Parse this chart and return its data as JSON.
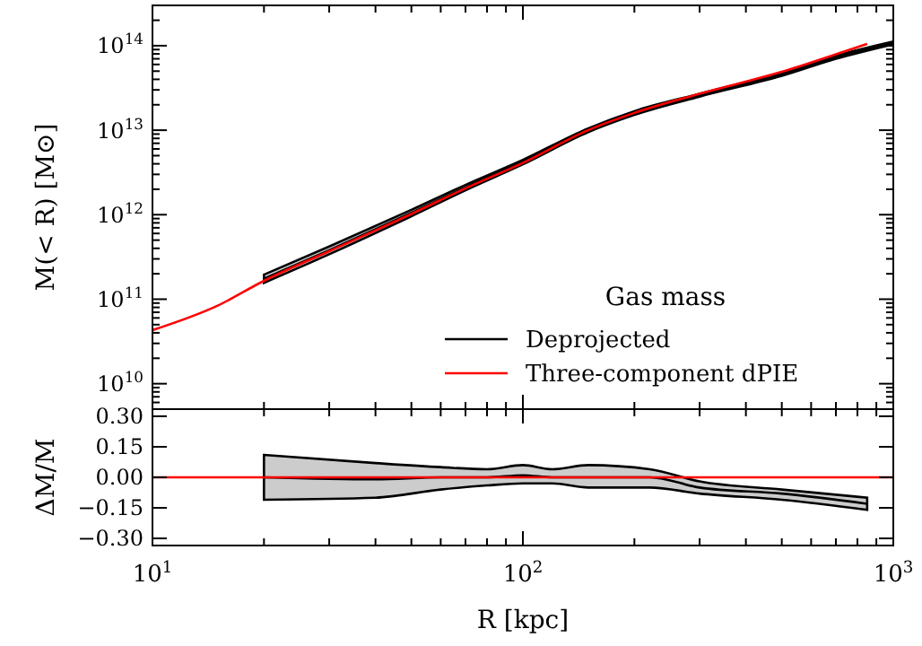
{
  "chart_data": [
    {
      "type": "line",
      "ylabel": "M(< R) [M⊙]",
      "legend_title": "Gas mass",
      "legend": "bottom right",
      "log": "xy",
      "tick_labels": "y",
      "xlim": [
        10,
        1000
      ],
      "ylim": [
        5000000000.0,
        300000000000000.0
      ],
      "xticks": [
        {
          "value": 10,
          "label": null
        },
        {
          "value": 100,
          "label": null
        },
        {
          "value": 1000,
          "label": null
        }
      ],
      "yticks": [
        {
          "value": 10000000000.0,
          "label": "10$^{10}$"
        },
        {
          "value": 100000000000.0,
          "label": "10$^{11}$"
        },
        {
          "value": 1000000000000.0,
          "label": "10$^{12}$"
        },
        {
          "value": 10000000000000.0,
          "label": "10$^{13}$"
        },
        {
          "value": 100000000000000.0,
          "label": "10$^{14}$"
        }
      ],
      "series": [
        {
          "name": "Deprojected",
          "color": "#000000",
          "x": [
            20,
            30,
            50,
            70,
            100,
            150,
            200,
            300,
            500,
            700,
            1000
          ],
          "values": [
            175000000000.0,
            380000000000.0,
            1050000000000.0,
            2100000000000.0,
            4200000000000.0,
            10000000000000.0,
            16000000000000.0,
            26000000000000.0,
            46000000000000.0,
            73000000000000.0,
            108000000000000.0
          ],
          "lower": [
            156000000000.0,
            340000000000.0,
            960000000000.0,
            1950000000000.0,
            3950000000000.0,
            9500000000000.0,
            15200000000000.0,
            25000000000000.0,
            44000000000000.0,
            70000000000000.0,
            104000000000000.0
          ],
          "upper": [
            195000000000.0,
            420000000000.0,
            1140000000000.0,
            2250000000000.0,
            4450000000000.0,
            10500000000000.0,
            16800000000000.0,
            27000000000000.0,
            48000000000000.0,
            76000000000000.0,
            112000000000000.0
          ]
        },
        {
          "name": "Three-component dPIE",
          "color": "#ff0000",
          "x": [
            10,
            15,
            20,
            30,
            50,
            70,
            100,
            150,
            200,
            300,
            500,
            700,
            850
          ],
          "values": [
            43000000000.0,
            84000000000.0,
            165000000000.0,
            370000000000.0,
            1020000000000.0,
            2050000000000.0,
            4100000000000.0,
            10000000000000.0,
            16000000000000.0,
            27000000000000.0,
            49000000000000.0,
            79000000000000.0,
            105000000000000.0
          ]
        }
      ]
    },
    {
      "type": "line",
      "xlabel": "R [kpc]",
      "ylabel": "ΔM/M",
      "log": "x",
      "xlim": [
        10,
        1000
      ],
      "ylim": [
        -0.335,
        0.335
      ],
      "xticks": [
        {
          "value": 10,
          "label": "10$^{1}$"
        },
        {
          "value": 100,
          "label": "10$^{2}$"
        },
        {
          "value": 1000,
          "label": "10$^{3}$"
        }
      ],
      "yticks": [
        {
          "value": 0.3,
          "label": "0.30"
        },
        {
          "value": 0.15,
          "label": "0.15"
        },
        {
          "value": 0,
          "label": "0.00"
        },
        {
          "value": -0.15,
          "label": "−0.15"
        },
        {
          "value": -0.3,
          "label": "−0.30"
        }
      ],
      "series": [
        {
          "color": "#000000",
          "x": [
            20,
            40,
            60,
            80,
            100,
            120,
            150,
            220,
            300,
            500,
            850
          ],
          "values": [
            0,
            -0.01,
            0,
            0,
            0.01,
            0,
            0,
            0,
            -0.05,
            -0.08,
            -0.13
          ],
          "lower": [
            -0.11,
            -0.1,
            -0.06,
            -0.04,
            -0.03,
            -0.03,
            -0.05,
            -0.05,
            -0.08,
            -0.11,
            -0.16
          ],
          "upper": [
            0.11,
            0.07,
            0.05,
            0.04,
            0.06,
            0.04,
            0.06,
            0.04,
            -0.02,
            -0.06,
            -0.1
          ]
        },
        {
          "color": "#ff0000",
          "x": [
            10,
            1000
          ],
          "values": [
            0,
            0
          ]
        }
      ]
    }
  ]
}
